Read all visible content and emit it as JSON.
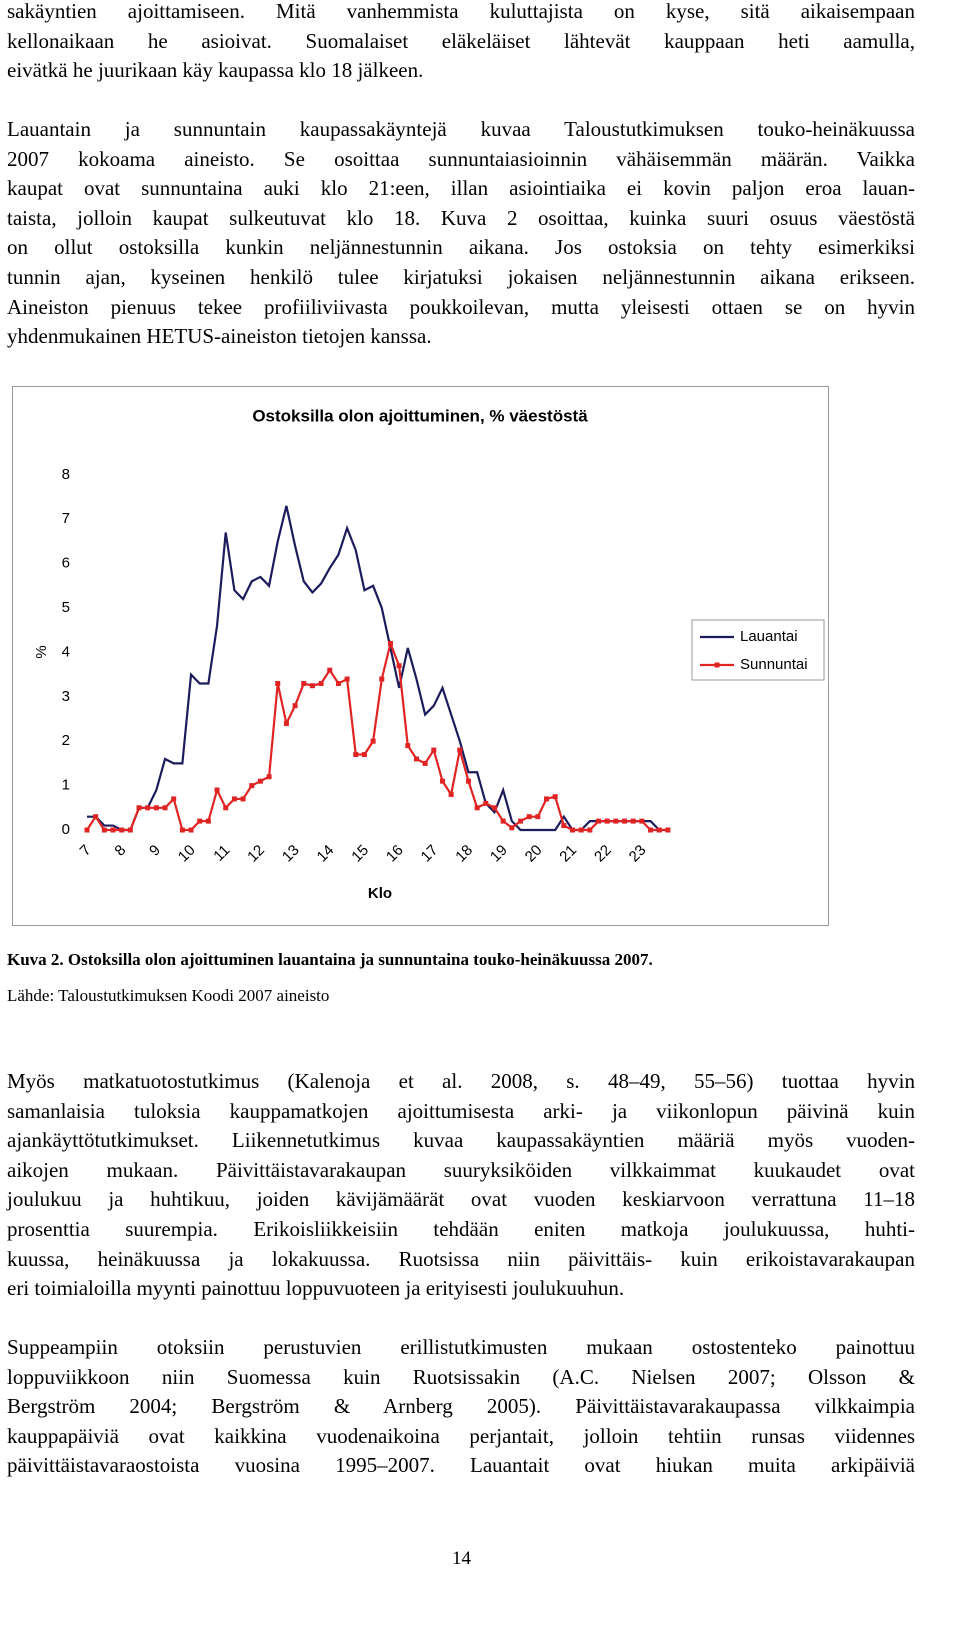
{
  "paragraphs": [
    [
      "sakäyntien ajoittamiseen. Mitä vanhemmista kuluttajista on kyse, sitä aikaisempaan",
      "kellonaikaan he asioivat. Suomalaiset eläkeläiset lähtevät kauppaan heti aamulla,",
      "eivätkä he juurikaan käy kaupassa klo 18 jälkeen."
    ],
    [
      "Lauantain ja sunnuntain kaupassakäyntejä kuvaa Taloustutkimuksen touko-heinäkuussa",
      "2007 kokoama aineisto. Se osoittaa sunnuntaiasioinnin vähäisemmän määrän. Vaikka",
      "kaupat ovat sunnuntaina auki klo 21:een, illan asiointiaika ei kovin paljon eroa lauan-",
      "taista, jolloin kaupat sulkeutuvat klo 18. Kuva 2 osoittaa, kuinka suuri osuus väestöstä",
      "on ollut ostoksilla kunkin neljännestunnin aikana. Jos ostoksia on tehty esimerkiksi",
      "tunnin ajan, kyseinen henkilö tulee kirjatuksi jokaisen neljännestunnin aikana erikseen.",
      "Aineiston pienuus tekee profiiliviivasta poukkoilevan, mutta yleisesti ottaen se on hyvin",
      "yhdenmukainen HETUS-aineiston tietojen kanssa."
    ],
    [
      "Myös matkatuotostutkimus (Kalenoja et al. 2008, s. 48–49, 55–56) tuottaa hyvin",
      "samanlaisia tuloksia kauppamatkojen ajoittumisesta arki- ja viikonlopun päivinä kuin",
      "ajankäyttötutkimukset. Liikennetutkimus kuvaa kaupassakäyntien määriä myös vuoden-",
      "aikojen mukaan. Päivittäistavarakaupan suuryksiköiden vilkkaimmat kuukaudet ovat",
      "joulukuu ja huhtikuu, joiden kävijämäärät ovat vuoden keskiarvoon verrattuna 11–18",
      "prosenttia suurempia. Erikoisliikkeisiin tehdään eniten matkoja joulukuussa, huhti-",
      "kuussa, heinäkuussa ja lokakuussa. Ruotsissa niin päivittäis- kuin erikoistavarakaupan",
      "eri toimialoilla myynti painottuu loppuvuoteen ja erityisesti joulukuuhun."
    ],
    [
      "Suppeampiin otoksiin perustuvien erillistutkimusten mukaan ostostenteko painottuu",
      "loppuviikkoon niin Suomessa kuin Ruotsissakin (A.C. Nielsen 2007; Olsson &",
      "Bergström 2004; Bergström & Arnberg 2005). Päivittäistavarakaupassa vilkkaimpia",
      "kauppapäiviä ovat kaikkina vuodenaikoina perjantait, jolloin tehtiin runsas viidennes",
      "päivittäistavaraostoista vuosina 1995–2007. Lauantait ovat hiukan muita arkipäiviä"
    ]
  ],
  "caption": "Kuva 2. Ostoksilla olon ajoittuminen lauantaina ja sunnuntaina touko-heinäkuussa 2007.",
  "source": "Lähde: Taloustutkimuksen Koodi 2007 aineisto",
  "page_number": "14",
  "chart_data": {
    "type": "line",
    "title": "Ostoksilla olon ajoittuminen, % väestöstä",
    "y_label": "%",
    "x_label": "Klo",
    "categories": [
      "7",
      null,
      null,
      null,
      "8",
      null,
      null,
      null,
      "9",
      null,
      null,
      null,
      "10",
      null,
      null,
      null,
      "11",
      null,
      null,
      null,
      "12",
      null,
      null,
      null,
      "13",
      null,
      null,
      null,
      "14",
      null,
      null,
      null,
      "15",
      null,
      null,
      null,
      "16",
      null,
      null,
      null,
      "17",
      null,
      null,
      null,
      "18",
      null,
      null,
      null,
      "19",
      null,
      null,
      null,
      "20",
      null,
      null,
      null,
      "21",
      null,
      null,
      null,
      "22",
      null,
      null,
      null,
      "23",
      null,
      null,
      null
    ],
    "ylim": [
      0,
      8
    ],
    "yticks": [
      0,
      1,
      2,
      3,
      4,
      5,
      6,
      7,
      8
    ],
    "legend": "right",
    "series": [
      {
        "name": "Lauantai",
        "color": "#1c1c5c",
        "values": [
          0.3,
          0.3,
          0.1,
          0.1,
          0,
          0,
          0.5,
          0.5,
          0.9,
          1.6,
          1.5,
          1.5,
          3.5,
          3.3,
          3.3,
          4.6,
          6.7,
          5.4,
          5.2,
          5.6,
          5.7,
          5.5,
          6.5,
          7.3,
          6.4,
          5.6,
          5.35,
          5.55,
          5.9,
          6.2,
          6.8,
          6.3,
          5.4,
          5.5,
          5.0,
          4.1,
          3.2,
          4.1,
          3.4,
          2.6,
          2.8,
          3.2,
          2.6,
          2.0,
          1.3,
          1.3,
          0.6,
          0.4,
          0.9,
          0.2,
          0,
          0,
          0,
          0,
          0,
          0.3,
          0,
          0,
          0.2,
          0.2,
          0.2,
          0.2,
          0.2,
          0.2,
          0.2,
          0.2,
          0,
          0
        ]
      },
      {
        "name": "Sunnuntai",
        "color": "#e02424",
        "values": [
          0,
          0.3,
          0,
          0,
          0,
          0,
          0.5,
          0.5,
          0.5,
          0.5,
          0.7,
          0,
          0,
          0.2,
          0.2,
          0.9,
          0.5,
          0.7,
          0.7,
          1.0,
          1.1,
          1.2,
          3.3,
          2.4,
          2.8,
          3.3,
          3.25,
          3.3,
          3.6,
          3.3,
          3.4,
          1.7,
          1.7,
          2.0,
          3.4,
          4.2,
          3.7,
          1.9,
          1.6,
          1.5,
          1.8,
          1.1,
          0.8,
          1.8,
          1.1,
          0.5,
          0.6,
          0.5,
          0.2,
          0.05,
          0.2,
          0.3,
          0.3,
          0.7,
          0.75,
          0.1,
          0,
          0,
          0,
          0.2,
          0.2,
          0.2,
          0.2,
          0.2,
          0.2,
          0,
          0,
          0
        ]
      }
    ]
  }
}
